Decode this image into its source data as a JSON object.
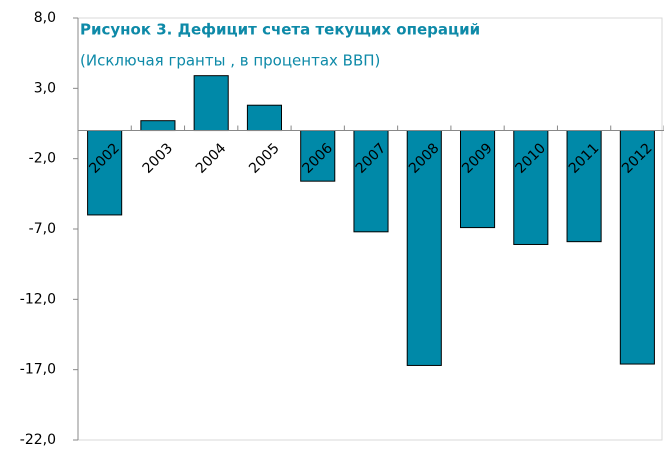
{
  "chart_data": {
    "type": "bar",
    "title": "Рисунок 3. Дефицит счета текущих операций",
    "subtitle": "(Исключая гранты , в процентах ВВП)",
    "categories": [
      "2002",
      "2003",
      "2004",
      "2005",
      "2006",
      "2007",
      "2008",
      "2009",
      "2010",
      "2011",
      "2012"
    ],
    "values": [
      -6.0,
      0.7,
      3.9,
      1.8,
      -3.6,
      -7.2,
      -16.7,
      -6.9,
      -8.1,
      -7.9,
      -16.6
    ],
    "color": "#0089a8",
    "ylim": [
      -22,
      8
    ],
    "yticks": [
      {
        "value": -22,
        "label": "-22,0"
      },
      {
        "value": -17,
        "label": "-17,0"
      },
      {
        "value": -12,
        "label": "-12,0"
      },
      {
        "value": -7,
        "label": "-7,0"
      },
      {
        "value": -2,
        "label": "-2,0"
      },
      {
        "value": 3,
        "label": "3,0"
      },
      {
        "value": 8,
        "label": "8,0"
      }
    ],
    "grid": false
  }
}
